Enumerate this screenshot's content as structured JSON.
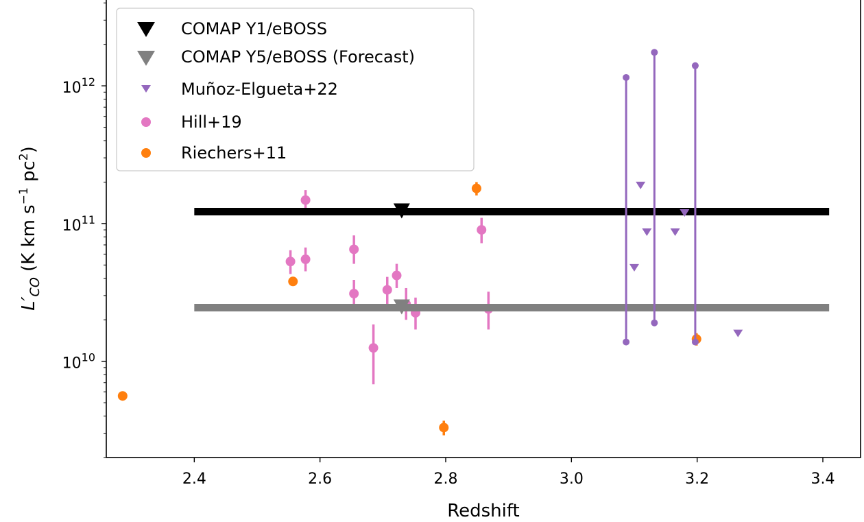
{
  "chart_data": {
    "type": "scatter",
    "title": "",
    "xlabel": "Redshift",
    "ylabel": {
      "base": "L",
      "prime": "′",
      "subscript": "CO",
      "units_open": " (K km s",
      "units_exp": "−1",
      "units_mid": " pc",
      "units_exp2": "2",
      "units_close": ")"
    },
    "xlim": [
      2.26,
      3.46
    ],
    "ylim": [
      2000000000.0,
      4200000000000.0
    ],
    "yscale": "log",
    "xticks": [
      2.4,
      2.6,
      2.8,
      3.0,
      3.2,
      3.4
    ],
    "xtick_labels": [
      "2.4",
      "2.6",
      "2.8",
      "3.0",
      "3.2",
      "3.4"
    ],
    "yticks": [
      {
        "value": 10000000000.0,
        "base": "10",
        "exp": "10"
      },
      {
        "value": 100000000000.0,
        "base": "10",
        "exp": "11"
      },
      {
        "value": 1000000000000.0,
        "base": "10",
        "exp": "12"
      }
    ],
    "grid": false,
    "legend_position": "top-left",
    "colors": {
      "comap_y1": "#000000",
      "comap_y5": "#808080",
      "munoz": "#9467bd",
      "hill": "#e377c2",
      "riechers": "#ff7f0e"
    },
    "series": [
      {
        "name": "COMAP Y1/eBOSS",
        "kind": "limit-line",
        "color_key": "comap_y1",
        "x_range": [
          2.4,
          3.41
        ],
        "y": 122000000000.0,
        "marker_x": 2.73
      },
      {
        "name": "COMAP Y5/eBOSS (Forecast)",
        "kind": "limit-line",
        "color_key": "comap_y5",
        "x_range": [
          2.4,
          3.41
        ],
        "y": 24500000000.0,
        "marker_x": 2.73
      },
      {
        "name": "Muñoz-Elgueta+22",
        "kind": "upper-limits",
        "color_key": "munoz",
        "points": [
          {
            "x": 3.11,
            "y": 190000000000.0
          },
          {
            "x": 3.1,
            "y": 48000000000.0
          },
          {
            "x": 3.12,
            "y": 87000000000.0
          },
          {
            "x": 3.165,
            "y": 87000000000.0
          },
          {
            "x": 3.18,
            "y": 120000000000.0
          },
          {
            "x": 3.265,
            "y": 16000000000.0
          }
        ],
        "ranges": [
          {
            "x": 3.087,
            "low": 13800000000.0,
            "high": 1150000000000.0
          },
          {
            "x": 3.132,
            "low": 19000000000.0,
            "high": 1750000000000.0
          },
          {
            "x": 3.197,
            "low": 13800000000.0,
            "high": 1400000000000.0
          }
        ]
      },
      {
        "name": "Hill+19",
        "kind": "points-with-errors",
        "color_key": "hill",
        "points": [
          {
            "x": 2.553,
            "y": 53000000000.0,
            "low": 43000000000.0,
            "high": 64000000000.0
          },
          {
            "x": 2.577,
            "y": 148000000000.0,
            "low": 125000000000.0,
            "high": 175000000000.0
          },
          {
            "x": 2.577,
            "y": 55000000000.0,
            "low": 45000000000.0,
            "high": 67000000000.0
          },
          {
            "x": 2.654,
            "y": 65000000000.0,
            "low": 51000000000.0,
            "high": 82000000000.0
          },
          {
            "x": 2.654,
            "y": 31000000000.0,
            "low": 24500000000.0,
            "high": 39000000000.0
          },
          {
            "x": 2.685,
            "y": 12500000000.0,
            "low": 6800000000.0,
            "high": 18500000000.0
          },
          {
            "x": 2.707,
            "y": 33000000000.0,
            "low": 26000000000.0,
            "high": 41000000000.0
          },
          {
            "x": 2.722,
            "y": 42000000000.0,
            "low": 34000000000.0,
            "high": 51000000000.0
          },
          {
            "x": 2.737,
            "y": 26000000000.0,
            "low": 20000000000.0,
            "high": 34000000000.0
          },
          {
            "x": 2.752,
            "y": 22500000000.0,
            "low": 17000000000.0,
            "high": 29000000000.0
          },
          {
            "x": 2.857,
            "y": 90000000000.0,
            "low": 72000000000.0,
            "high": 110000000000.0
          },
          {
            "x": 2.868,
            "y": 24000000000.0,
            "low": 17000000000.0,
            "high": 32000000000.0
          }
        ]
      },
      {
        "name": "Riechers+11",
        "kind": "points-with-errors",
        "color_key": "riechers",
        "points": [
          {
            "x": 2.286,
            "y": 5600000000.0,
            "low": 5300000000.0,
            "high": 5900000000.0
          },
          {
            "x": 2.557,
            "y": 38000000000.0,
            "low": 36000000000.0,
            "high": 40000000000.0
          },
          {
            "x": 2.797,
            "y": 3300000000.0,
            "low": 2900000000.0,
            "high": 3700000000.0
          },
          {
            "x": 2.849,
            "y": 180000000000.0,
            "low": 160000000000.0,
            "high": 200000000000.0
          },
          {
            "x": 3.199,
            "y": 14500000000.0,
            "low": 13000000000.0,
            "high": 16000000000.0
          }
        ]
      }
    ]
  }
}
